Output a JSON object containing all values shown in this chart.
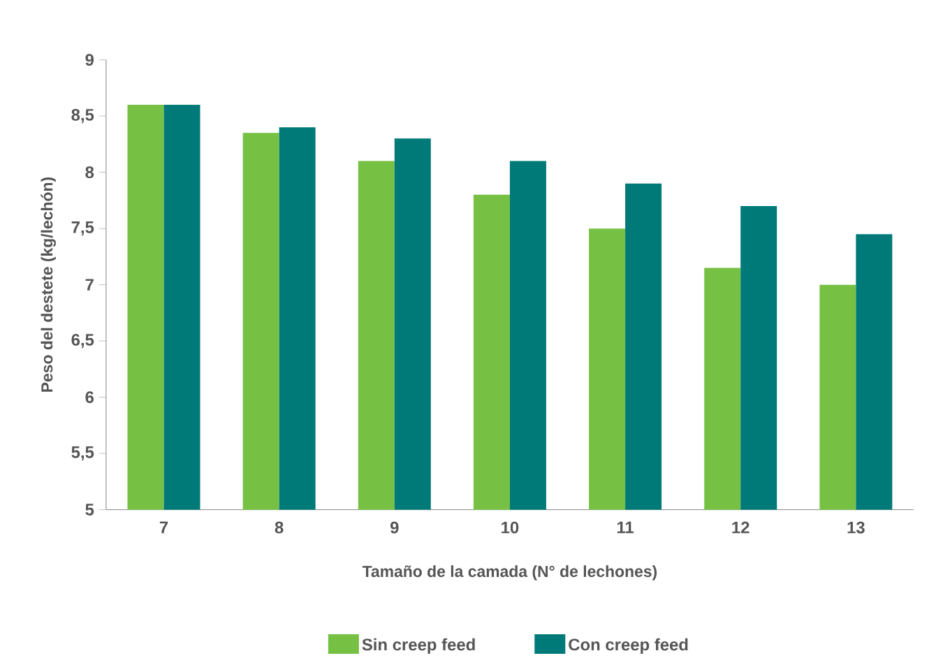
{
  "chart_data": {
    "type": "bar",
    "xlabel": "Tamaño de la camada (N° de lechones)",
    "ylabel": "Peso del destete (kg/lechón)",
    "categories": [
      "7",
      "8",
      "9",
      "10",
      "11",
      "12",
      "13"
    ],
    "series": [
      {
        "name": "Sin creep feed",
        "color": "#76c043",
        "values": [
          8.6,
          8.35,
          8.1,
          7.8,
          7.5,
          7.15,
          7.0
        ]
      },
      {
        "name": "Con creep feed",
        "color": "#007a78",
        "values": [
          8.6,
          8.4,
          8.3,
          8.1,
          7.9,
          7.7,
          7.45
        ]
      }
    ],
    "ylim": [
      5,
      9
    ],
    "yticks": [
      5,
      {
        "value": 5.5,
        "label": "5,5"
      },
      6,
      {
        "value": 6.5,
        "label": "6,5"
      },
      7,
      {
        "value": 7.5,
        "label": "7,5"
      },
      8,
      {
        "value": 8.5,
        "label": "8,5"
      },
      9
    ],
    "grid": false,
    "legend": "bottom"
  }
}
